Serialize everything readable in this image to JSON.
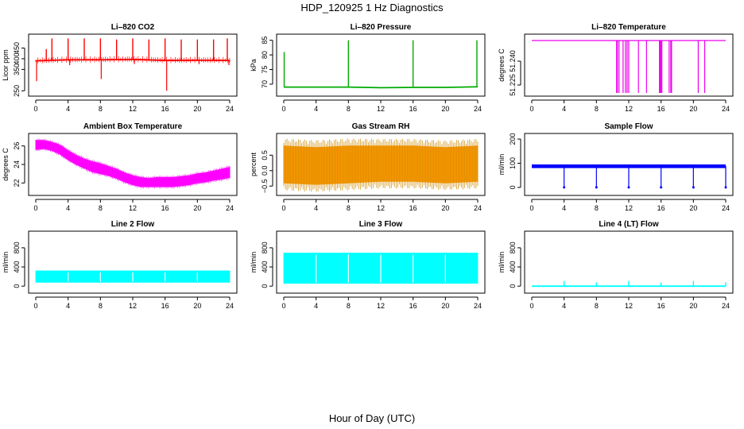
{
  "figure": {
    "title": "HDP_120925  1 Hz Diagnostics",
    "xlabel": "Hour of Day (UTC)"
  },
  "chart_data": [
    {
      "id": "co2",
      "type": "line",
      "title": "Li–820 CO2",
      "ylabel": "Licor ppm",
      "color": "#ff0000",
      "xlim": [
        0,
        24
      ],
      "ylim": [
        240,
        500
      ],
      "xticks": [
        0,
        4,
        8,
        12,
        16,
        20,
        24
      ],
      "yticks": [
        {
          "v": 250,
          "l": "250"
        },
        {
          "v": 350,
          "l": "350"
        },
        {
          "v": 400,
          "l": "400"
        },
        {
          "v": 450,
          "l": "450"
        }
      ],
      "baseline": [
        {
          "x": 0,
          "y": 390
        },
        {
          "x": 4,
          "y": 395
        },
        {
          "x": 8,
          "y": 395
        },
        {
          "x": 12,
          "y": 397
        },
        {
          "x": 16,
          "y": 392
        },
        {
          "x": 20,
          "y": 393
        },
        {
          "x": 24,
          "y": 392
        }
      ],
      "spikes_up": [
        {
          "x": 0.3,
          "y": 395
        },
        {
          "x": 1.3,
          "y": 445
        },
        {
          "x": 2.0,
          "y": 495
        },
        {
          "x": 4.0,
          "y": 495
        },
        {
          "x": 6.0,
          "y": 495
        },
        {
          "x": 8.0,
          "y": 495
        },
        {
          "x": 10.0,
          "y": 490
        },
        {
          "x": 12.0,
          "y": 495
        },
        {
          "x": 14.0,
          "y": 490
        },
        {
          "x": 16.0,
          "y": 495
        },
        {
          "x": 18.0,
          "y": 490
        },
        {
          "x": 20.0,
          "y": 490
        },
        {
          "x": 22.0,
          "y": 490
        },
        {
          "x": 23.7,
          "y": 495
        }
      ],
      "spikes_down": [
        {
          "x": 0.1,
          "y": 295
        },
        {
          "x": 8.1,
          "y": 305
        },
        {
          "x": 16.2,
          "y": 250
        },
        {
          "x": 4.2,
          "y": 370
        },
        {
          "x": 12.2,
          "y": 375
        },
        {
          "x": 20.2,
          "y": 375
        },
        {
          "x": 23.9,
          "y": 370
        }
      ]
    },
    {
      "id": "pressure",
      "type": "line",
      "title": "Li–820 Pressure",
      "ylabel": "kPa",
      "color": "#00aa00",
      "xlim": [
        0,
        24
      ],
      "ylim": [
        67,
        86
      ],
      "xticks": [
        0,
        4,
        8,
        12,
        16,
        20,
        24
      ],
      "yticks": [
        {
          "v": 70,
          "l": "70"
        },
        {
          "v": 75,
          "l": "75"
        },
        {
          "v": 80,
          "l": "80"
        },
        {
          "v": 85,
          "l": "85"
        }
      ],
      "baseline": [
        {
          "x": 0,
          "y": 69
        },
        {
          "x": 4,
          "y": 69
        },
        {
          "x": 8,
          "y": 69
        },
        {
          "x": 12,
          "y": 68.8
        },
        {
          "x": 16,
          "y": 68.9
        },
        {
          "x": 20,
          "y": 68.9
        },
        {
          "x": 24,
          "y": 69.1
        }
      ],
      "spikes_up": [
        {
          "x": 0.05,
          "y": 81
        },
        {
          "x": 8.0,
          "y": 85
        },
        {
          "x": 16.0,
          "y": 85
        },
        {
          "x": 23.9,
          "y": 85
        }
      ],
      "spikes_down": []
    },
    {
      "id": "licor_temp",
      "type": "line",
      "title": "Li–820 Temperature",
      "ylabel": "degrees C",
      "color": "#ee00ee",
      "xlim": [
        0,
        24
      ],
      "ylim": [
        51.22,
        51.255
      ],
      "xticks": [
        0,
        4,
        8,
        12,
        16,
        20,
        24
      ],
      "yticks": [
        {
          "v": 51.225,
          "l": "51.225"
        },
        {
          "v": 51.24,
          "l": "51.240"
        }
      ],
      "baseline": [
        {
          "x": 0,
          "y": 51.253
        },
        {
          "x": 24,
          "y": 51.253
        }
      ],
      "drops": [
        10.5,
        10.6,
        10.8,
        11.3,
        11.6,
        11.8,
        12.0,
        13.2,
        14.2,
        15.8,
        15.9,
        16.0,
        16.1,
        17.0,
        17.2,
        17.3,
        20.6,
        21.4
      ],
      "drop_to": 51.22
    },
    {
      "id": "ambient_temp",
      "type": "band",
      "title": "Ambient Box Temperature",
      "ylabel": "degrees C",
      "color": "#ff00ff",
      "xlim": [
        0,
        24
      ],
      "ylim": [
        21,
        27
      ],
      "xticks": [
        0,
        4,
        8,
        12,
        16,
        20,
        24
      ],
      "yticks": [
        {
          "v": 22,
          "l": "22"
        },
        {
          "v": 24,
          "l": "24"
        },
        {
          "v": 26,
          "l": "26"
        }
      ],
      "x": [
        0,
        1,
        2,
        3,
        4,
        5,
        6,
        7,
        8,
        9,
        10,
        11,
        12,
        13,
        14,
        15,
        16,
        17,
        18,
        19,
        20,
        21,
        22,
        23,
        24
      ],
      "low": [
        25.6,
        25.7,
        25.5,
        25.1,
        24.5,
        24.0,
        23.6,
        23.2,
        23.0,
        22.8,
        22.5,
        22.1,
        21.8,
        21.6,
        21.6,
        21.6,
        21.6,
        21.6,
        21.7,
        21.8,
        22.0,
        22.1,
        22.3,
        22.4,
        22.6
      ],
      "high": [
        26.6,
        26.6,
        26.4,
        26.1,
        25.5,
        25.0,
        24.6,
        24.3,
        24.1,
        23.8,
        23.5,
        23.1,
        22.8,
        22.6,
        22.5,
        22.6,
        22.6,
        22.6,
        22.7,
        22.8,
        23.0,
        23.1,
        23.3,
        23.5,
        23.7
      ]
    },
    {
      "id": "rh",
      "type": "band",
      "title": "Gas Stream RH",
      "ylabel": "percent",
      "color": "#ff9900",
      "xlim": [
        0,
        24
      ],
      "ylim": [
        -0.7,
        1.1
      ],
      "xticks": [
        0,
        4,
        8,
        12,
        16,
        20,
        24
      ],
      "yticks": [
        {
          "v": -0.5,
          "l": "−0.5"
        },
        {
          "v": 0.0,
          "l": "0.0"
        },
        {
          "v": 0.5,
          "l": "0.5"
        }
      ],
      "x": [
        0,
        4,
        8,
        12,
        16,
        20,
        24
      ],
      "low": [
        -0.4,
        -0.45,
        -0.4,
        -0.35,
        -0.35,
        -0.4,
        -0.35
      ],
      "high": [
        0.8,
        0.75,
        0.8,
        0.8,
        0.8,
        0.75,
        0.8
      ]
    },
    {
      "id": "sample_flow",
      "type": "line",
      "title": "Sample Flow",
      "ylabel": "ml/min",
      "color": "#0000ff",
      "xlim": [
        0,
        24
      ],
      "ylim": [
        -20,
        210
      ],
      "xticks": [
        0,
        4,
        8,
        12,
        16,
        20,
        24
      ],
      "yticks": [
        {
          "v": 0,
          "l": "0"
        },
        {
          "v": 100,
          "l": "100"
        },
        {
          "v": 200,
          "l": "200"
        }
      ],
      "baseline": [
        {
          "x": 0,
          "y": 88
        },
        {
          "x": 24,
          "y": 88
        }
      ],
      "band": [
        80,
        95
      ],
      "drops": [
        4,
        8,
        12,
        16,
        20,
        24
      ],
      "drop_to": 0
    },
    {
      "id": "line2_flow",
      "type": "band",
      "title": "Line 2 Flow",
      "ylabel": "ml/min",
      "color": "#00ffff",
      "xlim": [
        0,
        24
      ],
      "ylim": [
        -80,
        1080
      ],
      "xticks": [
        0,
        4,
        8,
        12,
        16,
        20,
        24
      ],
      "yticks": [
        {
          "v": 0,
          "l": "0"
        },
        {
          "v": 400,
          "l": "400"
        },
        {
          "v": 800,
          "l": "800"
        }
      ],
      "x": [
        0,
        24
      ],
      "low": [
        80,
        80
      ],
      "high": [
        320,
        320
      ],
      "gaps": [
        4,
        8,
        12,
        16,
        20
      ]
    },
    {
      "id": "line3_flow",
      "type": "band",
      "title": "Line 3 Flow",
      "ylabel": "ml/min",
      "color": "#00ffff",
      "xlim": [
        0,
        24
      ],
      "ylim": [
        -80,
        1080
      ],
      "xticks": [
        0,
        4,
        8,
        12,
        16,
        20,
        24
      ],
      "yticks": [
        {
          "v": 0,
          "l": "0"
        },
        {
          "v": 400,
          "l": "400"
        },
        {
          "v": 800,
          "l": "800"
        }
      ],
      "x": [
        0,
        24
      ],
      "low": [
        60,
        60
      ],
      "high": [
        690,
        690
      ],
      "gaps": [
        4,
        8,
        12,
        16,
        20
      ]
    },
    {
      "id": "line4_flow",
      "type": "line",
      "title": "Line 4 (LT) Flow",
      "ylabel": "ml/min",
      "color": "#00ffff",
      "xlim": [
        0,
        24
      ],
      "ylim": [
        -80,
        1080
      ],
      "xticks": [
        0,
        4,
        8,
        12,
        16,
        20,
        24
      ],
      "yticks": [
        {
          "v": 0,
          "l": "0"
        },
        {
          "v": 400,
          "l": "400"
        },
        {
          "v": 800,
          "l": "800"
        }
      ],
      "baseline": [
        {
          "x": 0,
          "y": 0
        },
        {
          "x": 24,
          "y": 0
        }
      ],
      "spikes_up": [
        {
          "x": 4,
          "y": 110
        },
        {
          "x": 8,
          "y": 80
        },
        {
          "x": 12,
          "y": 110
        },
        {
          "x": 16,
          "y": 80
        },
        {
          "x": 20,
          "y": 110
        },
        {
          "x": 24,
          "y": 80
        }
      ],
      "spikes_down": []
    }
  ]
}
